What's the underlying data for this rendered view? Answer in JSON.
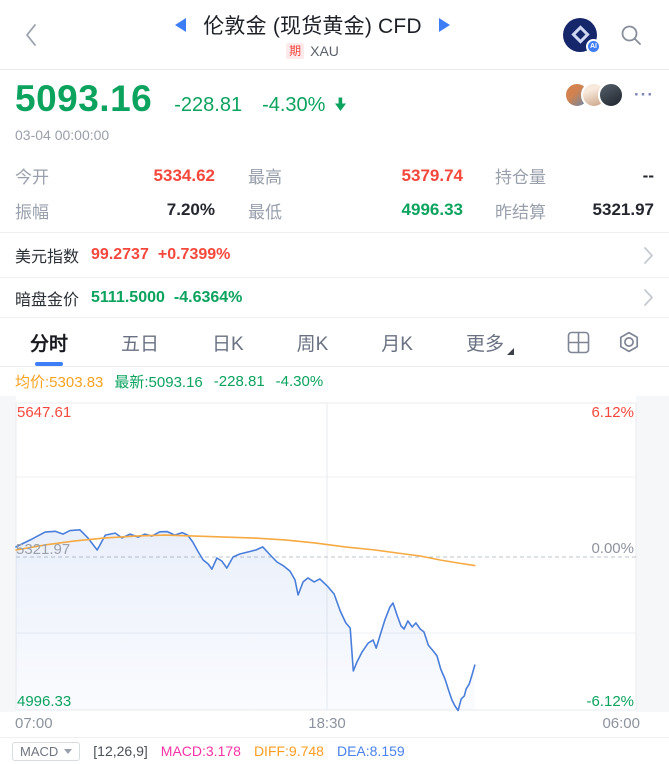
{
  "header": {
    "title": "伦敦金 (现货黄金) CFD",
    "tag": "期",
    "symbol": "XAU"
  },
  "quote": {
    "price": "5093.16",
    "change": "-228.81",
    "change_pct": "-4.30%",
    "timestamp": "03-04 00:00:00",
    "more": "···"
  },
  "stats": {
    "rows": [
      [
        {
          "label": "今开",
          "value": "5334.62"
        },
        {
          "label": "最高",
          "value": "5379.74"
        },
        {
          "label": "持仓量",
          "value": "--"
        }
      ],
      [
        {
          "label": "振幅",
          "value": "7.20%"
        },
        {
          "label": "最低",
          "value": "4996.33"
        },
        {
          "label": "昨结算",
          "value": "5321.97"
        }
      ]
    ]
  },
  "links": [
    {
      "label": "美元指数",
      "value": "99.2737",
      "pct": "+0.7399%"
    },
    {
      "label": "暗盘金价",
      "value": "5111.5000",
      "pct": "-4.6364%"
    }
  ],
  "tabs": [
    "分时",
    "五日",
    "日K",
    "周K",
    "月K",
    "更多"
  ],
  "legend": {
    "avg": "均价:5303.83",
    "latest": "最新:5093.16",
    "change": "-228.81",
    "pct": "-4.30%"
  },
  "chart_data": {
    "type": "line",
    "title": "分时 (intraday) — 伦敦金 现货黄金 CFD",
    "x_ticks": [
      "07:00",
      "18:30",
      "06:00"
    ],
    "y_left_labels": {
      "top": "5647.61",
      "mid": "5321.97",
      "bottom": "4996.33"
    },
    "y_right_labels": {
      "top": "6.12%",
      "mid": "0.00%",
      "bottom": "-6.12%"
    },
    "y_range_price": [
      4996.33,
      5647.61
    ],
    "y_range_pct": [
      -6.12,
      6.12
    ],
    "prev_settle": 5321.97,
    "grid": true,
    "series": [
      {
        "name": "price",
        "color": "#4a7edb",
        "points": [
          [
            0.0,
            0.4
          ],
          [
            0.023,
            0.68
          ],
          [
            0.047,
            0.99
          ],
          [
            0.063,
            1.02
          ],
          [
            0.076,
            0.91
          ],
          [
            0.087,
            1.05
          ],
          [
            0.103,
            1.08
          ],
          [
            0.116,
            0.76
          ],
          [
            0.131,
            0.28
          ],
          [
            0.144,
            0.87
          ],
          [
            0.16,
            0.95
          ],
          [
            0.171,
            0.76
          ],
          [
            0.184,
            0.91
          ],
          [
            0.197,
            0.79
          ],
          [
            0.208,
            0.91
          ],
          [
            0.219,
            0.83
          ],
          [
            0.232,
            1.0
          ],
          [
            0.244,
            1.01
          ],
          [
            0.256,
            0.87
          ],
          [
            0.268,
            0.97
          ],
          [
            0.277,
            0.87
          ],
          [
            0.285,
            0.6
          ],
          [
            0.294,
            0.2
          ],
          [
            0.302,
            -0.12
          ],
          [
            0.31,
            -0.28
          ],
          [
            0.316,
            -0.48
          ],
          [
            0.324,
            -0.04
          ],
          [
            0.332,
            -0.16
          ],
          [
            0.34,
            -0.44
          ],
          [
            0.35,
            0.0
          ],
          [
            0.361,
            0.12
          ],
          [
            0.374,
            0.2
          ],
          [
            0.387,
            0.28
          ],
          [
            0.398,
            0.4
          ],
          [
            0.41,
            0.08
          ],
          [
            0.421,
            -0.2
          ],
          [
            0.432,
            -0.36
          ],
          [
            0.442,
            -0.56
          ],
          [
            0.45,
            -0.91
          ],
          [
            0.455,
            -1.51
          ],
          [
            0.463,
            -0.99
          ],
          [
            0.471,
            -0.83
          ],
          [
            0.481,
            -0.99
          ],
          [
            0.49,
            -0.87
          ],
          [
            0.502,
            -1.15
          ],
          [
            0.513,
            -1.47
          ],
          [
            0.523,
            -2.15
          ],
          [
            0.532,
            -2.62
          ],
          [
            0.539,
            -2.82
          ],
          [
            0.544,
            -4.53
          ],
          [
            0.55,
            -4.17
          ],
          [
            0.558,
            -3.78
          ],
          [
            0.568,
            -3.42
          ],
          [
            0.576,
            -3.3
          ],
          [
            0.581,
            -3.62
          ],
          [
            0.587,
            -3.14
          ],
          [
            0.595,
            -2.5
          ],
          [
            0.603,
            -1.99
          ],
          [
            0.608,
            -1.83
          ],
          [
            0.615,
            -2.34
          ],
          [
            0.621,
            -2.74
          ],
          [
            0.626,
            -2.86
          ],
          [
            0.632,
            -2.54
          ],
          [
            0.639,
            -2.78
          ],
          [
            0.645,
            -2.62
          ],
          [
            0.652,
            -2.86
          ],
          [
            0.658,
            -2.98
          ],
          [
            0.665,
            -3.5
          ],
          [
            0.673,
            -3.74
          ],
          [
            0.679,
            -3.93
          ],
          [
            0.685,
            -4.45
          ],
          [
            0.692,
            -4.85
          ],
          [
            0.698,
            -5.32
          ],
          [
            0.703,
            -5.68
          ],
          [
            0.708,
            -5.92
          ],
          [
            0.713,
            -6.1
          ],
          [
            0.718,
            -5.64
          ],
          [
            0.723,
            -5.52
          ],
          [
            0.726,
            -5.25
          ],
          [
            0.731,
            -5.05
          ],
          [
            0.735,
            -4.73
          ],
          [
            0.74,
            -4.3
          ]
        ]
      },
      {
        "name": "avg",
        "color": "#f6aa43",
        "points": [
          [
            0.0,
            0.28
          ],
          [
            0.047,
            0.48
          ],
          [
            0.095,
            0.64
          ],
          [
            0.144,
            0.76
          ],
          [
            0.192,
            0.83
          ],
          [
            0.24,
            0.87
          ],
          [
            0.289,
            0.83
          ],
          [
            0.337,
            0.79
          ],
          [
            0.385,
            0.75
          ],
          [
            0.434,
            0.68
          ],
          [
            0.482,
            0.56
          ],
          [
            0.531,
            0.4
          ],
          [
            0.579,
            0.28
          ],
          [
            0.627,
            0.12
          ],
          [
            0.652,
            0.04
          ],
          [
            0.684,
            -0.12
          ],
          [
            0.713,
            -0.24
          ],
          [
            0.74,
            -0.34
          ]
        ]
      }
    ]
  },
  "macd": {
    "selector": "MACD",
    "params": "[12,26,9]",
    "macd_label": "MACD:3.178",
    "diff_label": "DIFF:9.748",
    "dea_label": "DEA:8.159"
  }
}
